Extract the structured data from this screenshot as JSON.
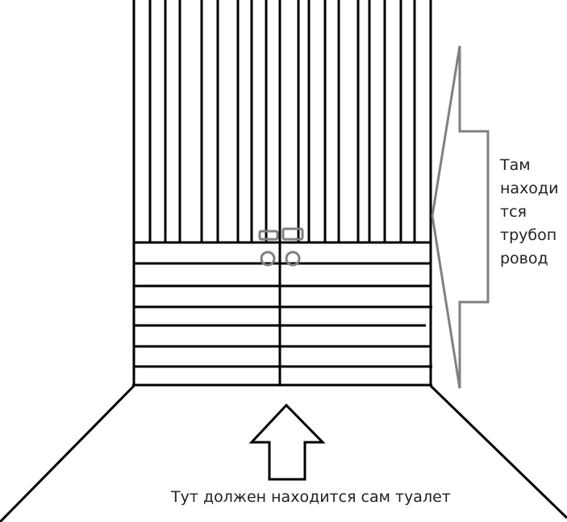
{
  "annotations": {
    "pipeline_lines": [
      "Там",
      "находи",
      "тся",
      "трубоп",
      "ровод"
    ],
    "toilet_note": "Тут должен находится сам туалет"
  },
  "colors": {
    "ink": "#000000",
    "marker": "#808080",
    "background": "#ffffff"
  }
}
